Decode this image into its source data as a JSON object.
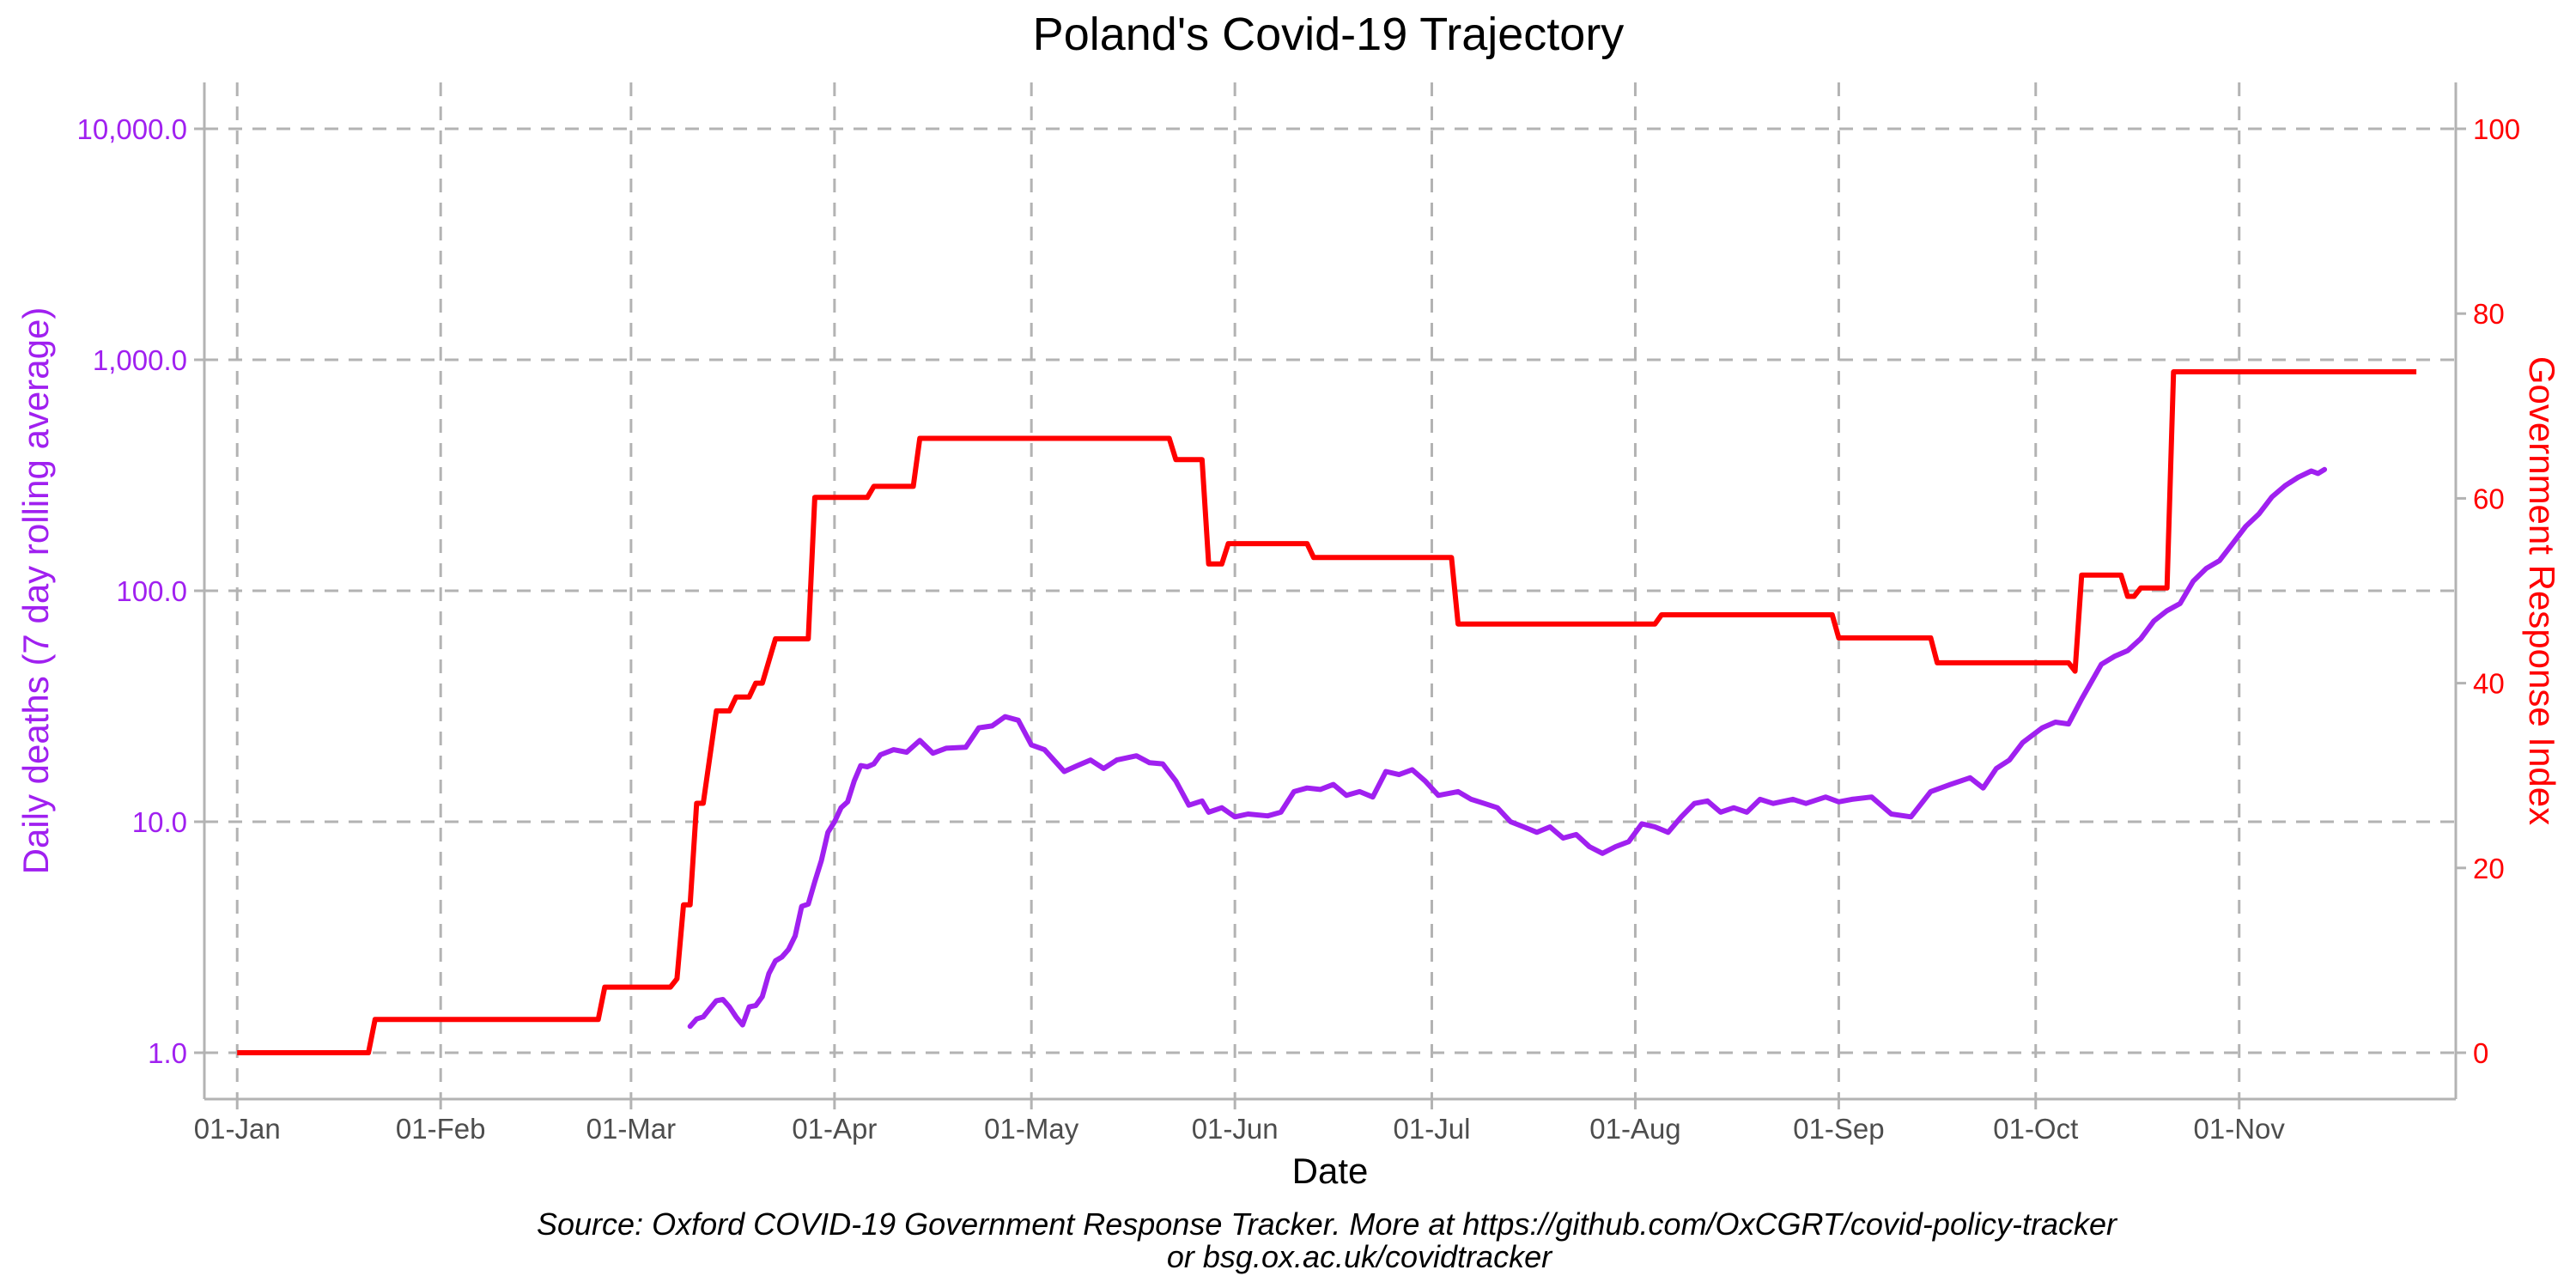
{
  "chart_data": {
    "type": "line",
    "title": "Poland's Covid-19 Trajectory",
    "xlabel": "Date",
    "ylabel_left": "Daily deaths (7 day rolling average)",
    "ylabel_right": "Government Response Index",
    "caption_line1": "Source: Oxford COVID-19 Government Response Tracker. More at https://github.com/OxCGRT/covid-policy-tracker",
    "caption_line2": "or bsg.ox.ac.uk/covidtracker",
    "x_ticks": [
      "01-Jan",
      "01-Feb",
      "01-Mar",
      "01-Apr",
      "01-May",
      "01-Jun",
      "01-Jul",
      "01-Aug",
      "01-Sep",
      "01-Oct",
      "01-Nov"
    ],
    "y_left_ticks": [
      "1.0",
      "10.0",
      "100.0",
      "1,000.0",
      "10,000.0"
    ],
    "y_left_scale": "log10",
    "y_left_range": [
      1,
      10000
    ],
    "y_right_ticks": [
      "0",
      "20",
      "40",
      "60",
      "80",
      "100"
    ],
    "y_right_range": [
      0,
      100
    ],
    "x_range": [
      "2019-12-27",
      "2020-12-04"
    ],
    "grid": true,
    "colors": {
      "deaths": "#a020f0",
      "index": "#ff0000",
      "axis_text": "#4d4d4d",
      "grid": "#b3b3b3"
    },
    "series": [
      {
        "name": "Daily deaths (7 day rolling average)",
        "axis": "left",
        "points": [
          [
            "2020-03-10",
            1.3
          ],
          [
            "2020-03-11",
            1.4
          ],
          [
            "2020-03-12",
            1.43
          ],
          [
            "2020-03-13",
            1.55
          ],
          [
            "2020-03-14",
            1.68
          ],
          [
            "2020-03-15",
            1.7
          ],
          [
            "2020-03-16",
            1.58
          ],
          [
            "2020-03-17",
            1.43
          ],
          [
            "2020-03-18",
            1.32
          ],
          [
            "2020-03-19",
            1.58
          ],
          [
            "2020-03-20",
            1.6
          ],
          [
            "2020-03-21",
            1.75
          ],
          [
            "2020-03-22",
            2.2
          ],
          [
            "2020-03-23",
            2.5
          ],
          [
            "2020-03-24",
            2.6
          ],
          [
            "2020-03-25",
            2.8
          ],
          [
            "2020-03-26",
            3.2
          ],
          [
            "2020-03-27",
            4.3
          ],
          [
            "2020-03-28",
            4.4
          ],
          [
            "2020-03-29",
            5.5
          ],
          [
            "2020-03-30",
            6.8
          ],
          [
            "2020-03-31",
            9.0
          ],
          [
            "2020-04-01",
            10.0
          ],
          [
            "2020-04-02",
            11.5
          ],
          [
            "2020-04-03",
            12.2
          ],
          [
            "2020-04-04",
            15.0
          ],
          [
            "2020-04-05",
            17.5
          ],
          [
            "2020-04-06",
            17.3
          ],
          [
            "2020-04-07",
            17.8
          ],
          [
            "2020-04-08",
            19.5
          ],
          [
            "2020-04-10",
            20.5
          ],
          [
            "2020-04-12",
            20.0
          ],
          [
            "2020-04-14",
            22.5
          ],
          [
            "2020-04-16",
            19.8
          ],
          [
            "2020-04-18",
            20.8
          ],
          [
            "2020-04-21",
            21.0
          ],
          [
            "2020-04-23",
            25.5
          ],
          [
            "2020-04-25",
            26.0
          ],
          [
            "2020-04-27",
            28.5
          ],
          [
            "2020-04-29",
            27.5
          ],
          [
            "2020-05-01",
            21.5
          ],
          [
            "2020-05-03",
            20.5
          ],
          [
            "2020-05-06",
            16.5
          ],
          [
            "2020-05-08",
            17.5
          ],
          [
            "2020-05-10",
            18.5
          ],
          [
            "2020-05-12",
            17.0
          ],
          [
            "2020-05-14",
            18.5
          ],
          [
            "2020-05-17",
            19.3
          ],
          [
            "2020-05-19",
            18.0
          ],
          [
            "2020-05-21",
            17.8
          ],
          [
            "2020-05-23",
            15.0
          ],
          [
            "2020-05-25",
            11.8
          ],
          [
            "2020-05-27",
            12.3
          ],
          [
            "2020-05-28",
            11.0
          ],
          [
            "2020-05-30",
            11.5
          ],
          [
            "2020-06-01",
            10.5
          ],
          [
            "2020-06-03",
            10.8
          ],
          [
            "2020-06-06",
            10.6
          ],
          [
            "2020-06-08",
            11.0
          ],
          [
            "2020-06-10",
            13.5
          ],
          [
            "2020-06-12",
            14.0
          ],
          [
            "2020-06-14",
            13.8
          ],
          [
            "2020-06-16",
            14.5
          ],
          [
            "2020-06-18",
            13.0
          ],
          [
            "2020-06-20",
            13.5
          ],
          [
            "2020-06-22",
            12.8
          ],
          [
            "2020-06-24",
            16.5
          ],
          [
            "2020-06-26",
            16.0
          ],
          [
            "2020-06-28",
            16.8
          ],
          [
            "2020-06-30",
            15.0
          ],
          [
            "2020-07-02",
            13.0
          ],
          [
            "2020-07-05",
            13.5
          ],
          [
            "2020-07-07",
            12.5
          ],
          [
            "2020-07-09",
            12.0
          ],
          [
            "2020-07-11",
            11.5
          ],
          [
            "2020-07-13",
            10.0
          ],
          [
            "2020-07-15",
            9.5
          ],
          [
            "2020-07-17",
            9.0
          ],
          [
            "2020-07-19",
            9.5
          ],
          [
            "2020-07-21",
            8.5
          ],
          [
            "2020-07-23",
            8.8
          ],
          [
            "2020-07-25",
            7.8
          ],
          [
            "2020-07-27",
            7.3
          ],
          [
            "2020-07-29",
            7.8
          ],
          [
            "2020-07-31",
            8.2
          ],
          [
            "2020-08-02",
            9.8
          ],
          [
            "2020-08-04",
            9.5
          ],
          [
            "2020-08-06",
            9.0
          ],
          [
            "2020-08-08",
            10.5
          ],
          [
            "2020-08-10",
            12.0
          ],
          [
            "2020-08-12",
            12.3
          ],
          [
            "2020-08-14",
            11.0
          ],
          [
            "2020-08-16",
            11.5
          ],
          [
            "2020-08-18",
            11.0
          ],
          [
            "2020-08-20",
            12.5
          ],
          [
            "2020-08-22",
            12.0
          ],
          [
            "2020-08-25",
            12.5
          ],
          [
            "2020-08-27",
            12.0
          ],
          [
            "2020-08-30",
            12.8
          ],
          [
            "2020-09-01",
            12.2
          ],
          [
            "2020-09-03",
            12.5
          ],
          [
            "2020-09-06",
            12.8
          ],
          [
            "2020-09-09",
            10.8
          ],
          [
            "2020-09-12",
            10.5
          ],
          [
            "2020-09-15",
            13.5
          ],
          [
            "2020-09-18",
            14.5
          ],
          [
            "2020-09-21",
            15.5
          ],
          [
            "2020-09-23",
            14.0
          ],
          [
            "2020-09-25",
            17.0
          ],
          [
            "2020-09-27",
            18.5
          ],
          [
            "2020-09-29",
            22.0
          ],
          [
            "2020-10-02",
            25.5
          ],
          [
            "2020-10-04",
            27.0
          ],
          [
            "2020-10-06",
            26.5
          ],
          [
            "2020-10-08",
            34.0
          ],
          [
            "2020-10-11",
            48.0
          ],
          [
            "2020-10-13",
            52.0
          ],
          [
            "2020-10-15",
            55.0
          ],
          [
            "2020-10-17",
            62.0
          ],
          [
            "2020-10-19",
            74.0
          ],
          [
            "2020-10-21",
            82.0
          ],
          [
            "2020-10-23",
            88.0
          ],
          [
            "2020-10-25",
            110.0
          ],
          [
            "2020-10-27",
            125.0
          ],
          [
            "2020-10-29",
            135.0
          ],
          [
            "2020-10-31",
            160.0
          ],
          [
            "2020-11-02",
            190.0
          ],
          [
            "2020-11-04",
            215.0
          ],
          [
            "2020-11-06",
            255.0
          ],
          [
            "2020-11-08",
            285.0
          ],
          [
            "2020-11-10",
            310.0
          ],
          [
            "2020-11-12",
            330.0
          ],
          [
            "2020-11-13",
            322.0
          ],
          [
            "2020-11-14",
            335.0
          ]
        ]
      },
      {
        "name": "Government Response Index",
        "axis": "right",
        "points": [
          [
            "2020-01-01",
            0
          ],
          [
            "2020-01-21",
            0
          ],
          [
            "2020-01-22",
            3.6
          ],
          [
            "2020-02-25",
            3.6
          ],
          [
            "2020-02-26",
            7.1
          ],
          [
            "2020-03-07",
            7.1
          ],
          [
            "2020-03-08",
            8.0
          ],
          [
            "2020-03-09",
            16.0
          ],
          [
            "2020-03-10",
            16.0
          ],
          [
            "2020-03-11",
            27.0
          ],
          [
            "2020-03-12",
            27.0
          ],
          [
            "2020-03-14",
            37.0
          ],
          [
            "2020-03-16",
            37.0
          ],
          [
            "2020-03-17",
            38.5
          ],
          [
            "2020-03-19",
            38.5
          ],
          [
            "2020-03-20",
            40.0
          ],
          [
            "2020-03-21",
            40.0
          ],
          [
            "2020-03-23",
            44.8
          ],
          [
            "2020-03-28",
            44.8
          ],
          [
            "2020-03-29",
            60.1
          ],
          [
            "2020-04-06",
            60.1
          ],
          [
            "2020-04-07",
            61.3
          ],
          [
            "2020-04-13",
            61.3
          ],
          [
            "2020-04-14",
            66.5
          ],
          [
            "2020-05-22",
            66.5
          ],
          [
            "2020-05-23",
            64.2
          ],
          [
            "2020-05-27",
            64.2
          ],
          [
            "2020-05-28",
            52.9
          ],
          [
            "2020-05-30",
            52.9
          ],
          [
            "2020-05-31",
            55.1
          ],
          [
            "2020-06-12",
            55.1
          ],
          [
            "2020-06-13",
            53.6
          ],
          [
            "2020-07-04",
            53.6
          ],
          [
            "2020-07-05",
            46.4
          ],
          [
            "2020-08-04",
            46.4
          ],
          [
            "2020-08-05",
            47.4
          ],
          [
            "2020-08-31",
            47.4
          ],
          [
            "2020-09-01",
            44.9
          ],
          [
            "2020-09-15",
            44.9
          ],
          [
            "2020-09-16",
            42.2
          ],
          [
            "2020-10-06",
            42.2
          ],
          [
            "2020-10-07",
            41.3
          ],
          [
            "2020-10-08",
            51.7
          ],
          [
            "2020-10-14",
            51.7
          ],
          [
            "2020-10-15",
            49.4
          ],
          [
            "2020-10-16",
            49.4
          ],
          [
            "2020-10-17",
            50.3
          ],
          [
            "2020-10-21",
            50.3
          ],
          [
            "2020-10-22",
            73.7
          ],
          [
            "2020-11-28",
            73.7
          ]
        ]
      }
    ]
  }
}
